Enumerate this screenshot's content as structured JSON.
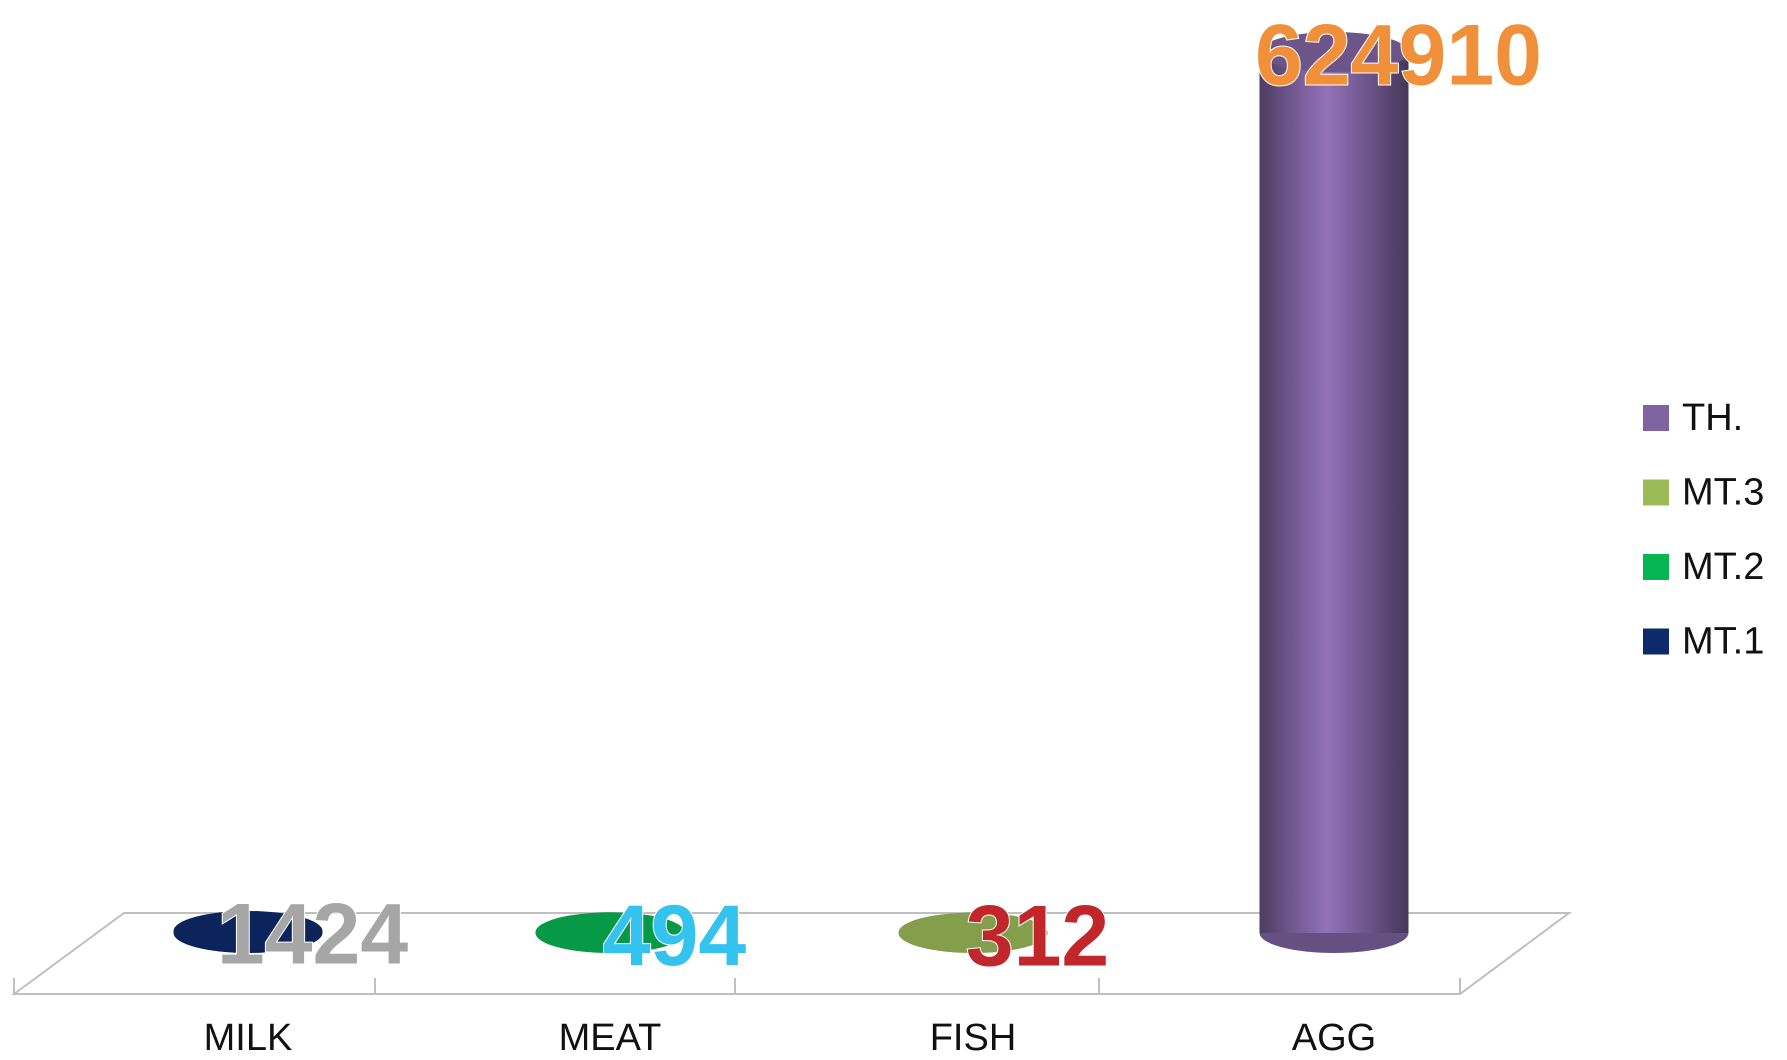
{
  "chart_data": {
    "type": "bar",
    "style": "cylinder",
    "categories": [
      "MILK",
      "MEAT",
      "FISH",
      "AGG"
    ],
    "series": [
      {
        "name": "MT.1",
        "color": "#0d2a6b",
        "label_color": "#a6a6a6",
        "values": [
          1424,
          null,
          null,
          null
        ]
      },
      {
        "name": "MT.2",
        "color": "#07b553",
        "label_color": "#33c3ee",
        "values": [
          null,
          494,
          null,
          null
        ]
      },
      {
        "name": "MT.3",
        "color": "#9bbb59",
        "label_color": "#c0262a",
        "values": [
          null,
          null,
          312,
          null
        ]
      },
      {
        "name": "TH.",
        "color": "#8064a2",
        "label_color": "#f0903a",
        "values": [
          null,
          null,
          null,
          624910
        ]
      }
    ],
    "ylim": [
      0,
      624910
    ],
    "legend": "right"
  }
}
